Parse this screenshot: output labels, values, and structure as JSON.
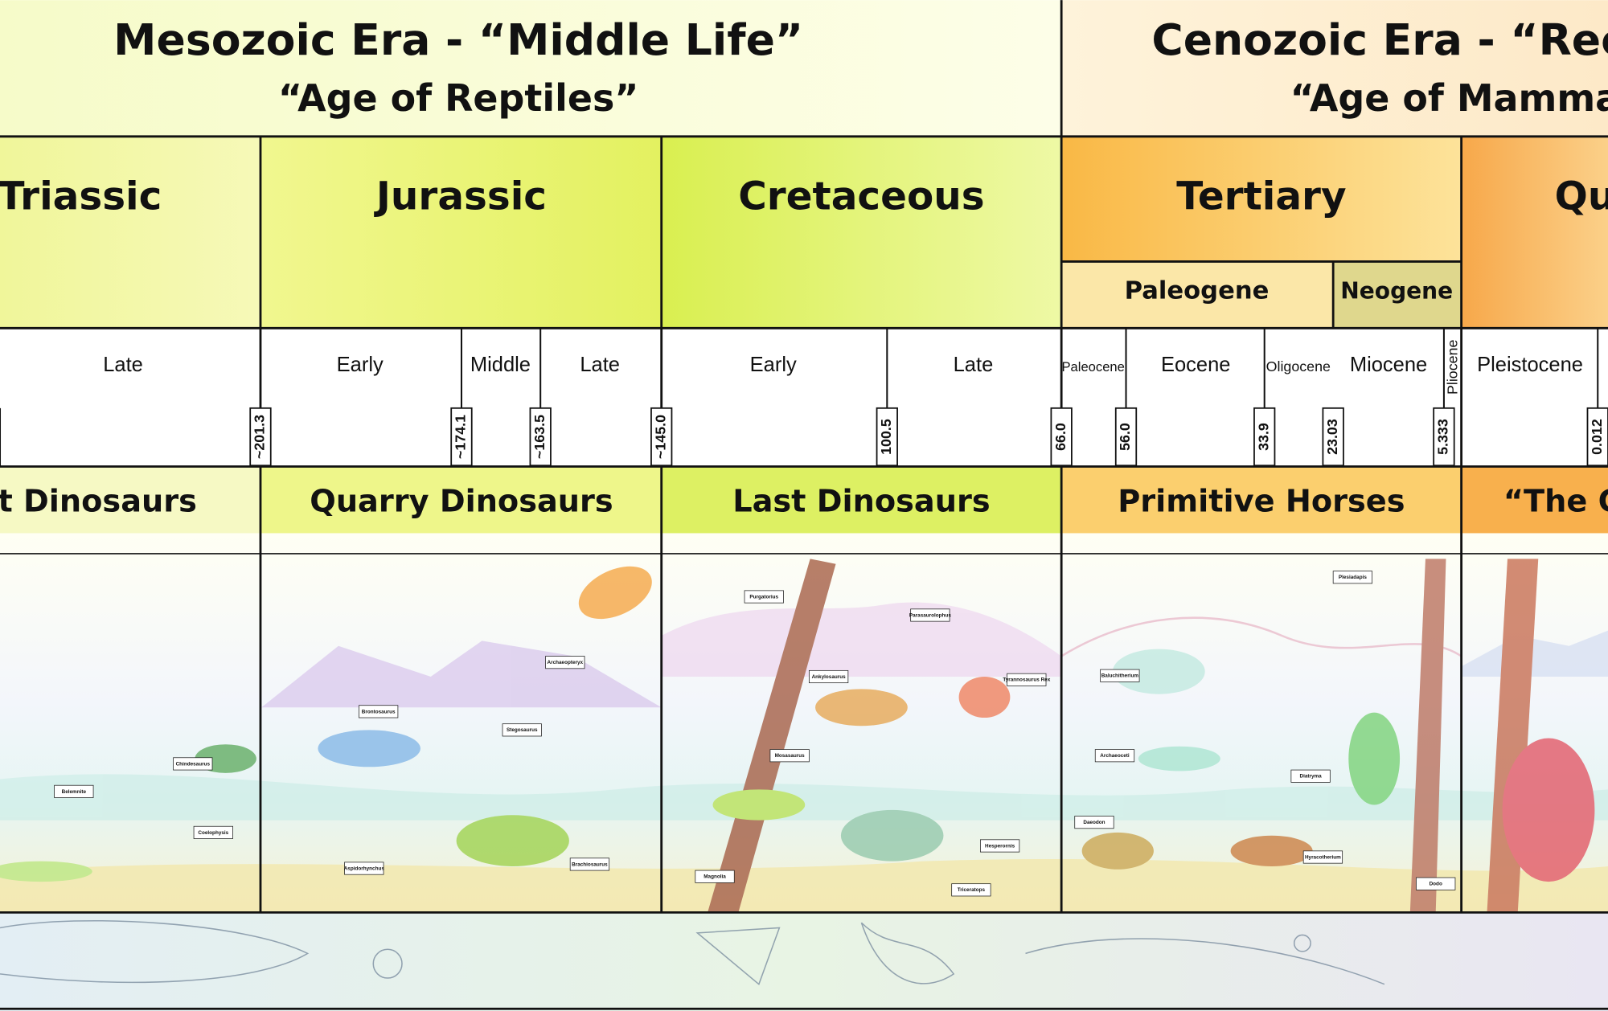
{
  "eras": [
    {
      "title": "Mesozoic Era - “Middle Life”",
      "subtitle": "“Age of Reptiles”"
    },
    {
      "title": "Cenozoic Era  - “Rece",
      "subtitle": "“Age of Mammal"
    }
  ],
  "periods": [
    "Triassic",
    "Jurassic",
    "Cretaceous",
    "Tertiary",
    "Qu"
  ],
  "tertiary_subdivisions": [
    "Paleogene",
    "Neogene"
  ],
  "epochs": [
    "Late",
    "Early",
    "Middle",
    "Late",
    "Early",
    "Late",
    "Paleocene",
    "Eocene",
    "Oligocene",
    "Miocene",
    "Pliocene",
    "Pleistocene"
  ],
  "boundary_ages": [
    "~201.3",
    "~174.1",
    "~163.5",
    "~145.0",
    "100.5",
    "66.0",
    "56.0",
    "33.9",
    "23.03",
    "5.333",
    "0.012"
  ],
  "themes": [
    "t Dinosaurs",
    "Quarry Dinosaurs",
    "Last Dinosaurs",
    "Primitive Horses",
    "“The G"
  ],
  "specimen_labels": [
    "Chindesaurus",
    "Belemnite",
    "Coelophysis",
    "Brontosaurus",
    "Archaeopteryx",
    "Stegosaurus",
    "Aspidorhynchus",
    "Brachiosaurus",
    "Purgatorius",
    "Parasaurolophus",
    "Ankylosaurus",
    "Tyrannosaurus Rex",
    "Mosasaurus",
    "Magnolia",
    "Hesperornis",
    "Triceratops",
    "Plesiadapis",
    "Baluchitherium",
    "Archaeoceti",
    "Diatryma",
    "Daeodon",
    "Hyracotherium",
    "Dodo"
  ]
}
